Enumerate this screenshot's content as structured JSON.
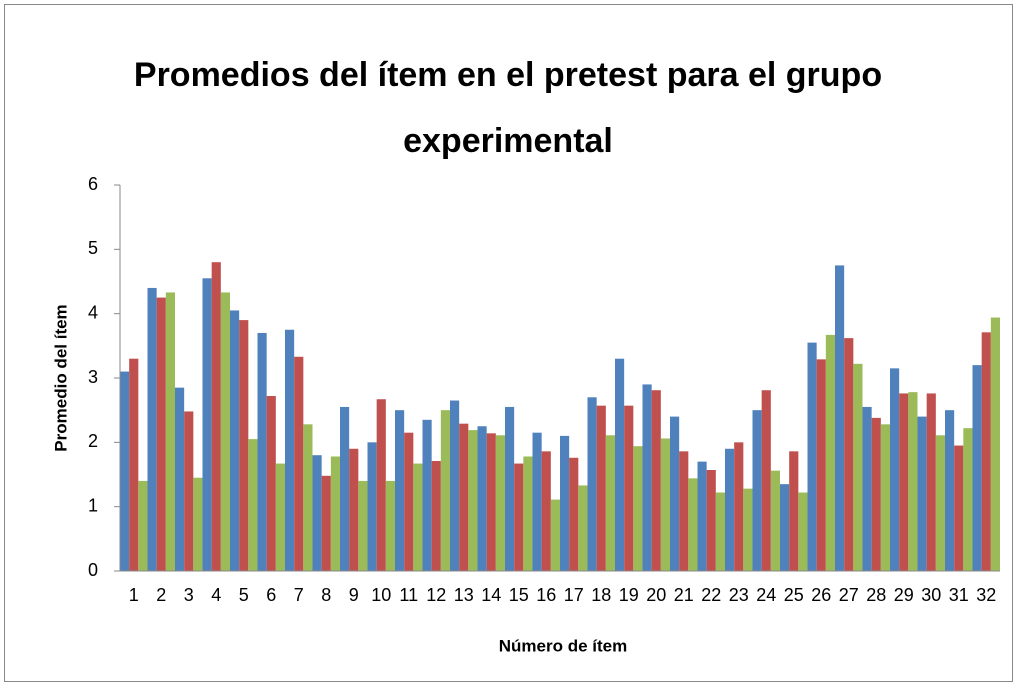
{
  "chart_data": {
    "type": "bar",
    "title": "Promedios del ítem en el pretest para el grupo experimental",
    "x_label": "Número de ítem",
    "y_label": "Promedio del ítem",
    "categories": [
      "1",
      "2",
      "3",
      "4",
      "5",
      "6",
      "7",
      "8",
      "9",
      "10",
      "11",
      "12",
      "13",
      "14",
      "15",
      "16",
      "17",
      "18",
      "19",
      "20",
      "21",
      "22",
      "23",
      "24",
      "25",
      "26",
      "27",
      "28",
      "29",
      "30",
      "31",
      "32"
    ],
    "series": [
      {
        "color": "#4f81bd",
        "values": [
          3.1,
          4.4,
          2.85,
          4.55,
          4.05,
          3.7,
          3.75,
          1.8,
          2.55,
          2.0,
          2.5,
          2.35,
          2.65,
          2.25,
          2.55,
          2.15,
          2.1,
          2.7,
          3.3,
          2.9,
          2.4,
          1.7,
          1.9,
          2.5,
          1.35,
          3.55,
          4.75,
          2.55,
          3.15,
          2.4,
          2.5,
          3.2
        ]
      },
      {
        "color": "#c0504d",
        "values": [
          3.3,
          4.25,
          2.48,
          4.8,
          3.9,
          2.72,
          3.33,
          1.48,
          1.9,
          2.67,
          2.15,
          1.71,
          2.29,
          2.14,
          1.67,
          1.86,
          1.76,
          2.57,
          2.57,
          2.81,
          1.86,
          1.57,
          2.0,
          2.81,
          1.86,
          3.29,
          3.62,
          2.38,
          2.76,
          2.76,
          1.95,
          3.71
        ]
      },
      {
        "color": "#9bbb59",
        "values": [
          1.4,
          4.33,
          1.45,
          4.33,
          2.05,
          1.67,
          2.28,
          1.78,
          1.4,
          1.4,
          1.67,
          2.5,
          2.19,
          2.11,
          1.78,
          1.11,
          1.33,
          2.11,
          1.94,
          2.06,
          1.44,
          1.22,
          1.28,
          1.56,
          1.22,
          3.67,
          3.22,
          2.28,
          2.78,
          2.11,
          2.22,
          3.94
        ]
      }
    ],
    "ylim": [
      0,
      6
    ],
    "yticks": [
      0,
      1,
      2,
      3,
      4,
      5,
      6
    ],
    "grid": false
  }
}
